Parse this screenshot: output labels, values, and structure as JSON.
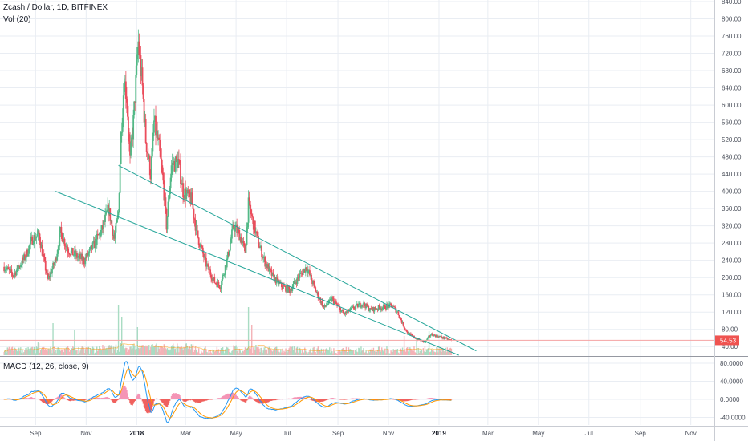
{
  "header": {
    "symbol_title": "Zcash / Dollar, 1D, BITFINEX",
    "volume_label": "Vol (20)",
    "macd_label": "MACD (12, 26, close, 9)"
  },
  "colors": {
    "up": "#53b987",
    "down": "#eb4d5c",
    "trendline": "#26a69a",
    "price_line": "#f5a3a3",
    "price_tag_bg": "#ef5350",
    "macd_line": "#2196f3",
    "signal_line": "#ff9800",
    "hist_up": "#26a69a",
    "hist_down": "#ef5350",
    "vol_ma": "#ff9800",
    "grid": "#e9edf3",
    "axis_text": "#4a4f5a"
  },
  "chart_data": [
    {
      "type": "candlestick",
      "title": "Zcash / Dollar, 1D, BITFINEX",
      "x_ticks": [
        "Sep",
        "Nov",
        "2018",
        "Mar",
        "May",
        "Jul",
        "Sep",
        "Nov",
        "2019",
        "Mar",
        "May",
        "Jul",
        "Sep",
        "Nov"
      ],
      "y_ticks": [
        "840.00",
        "800.00",
        "760.00",
        "720.00",
        "680.00",
        "640.00",
        "600.00",
        "560.00",
        "520.00",
        "480.00",
        "440.00",
        "400.00",
        "360.00",
        "320.00",
        "280.00",
        "240.00",
        "200.00",
        "160.00",
        "120.00",
        "80.00",
        "40.00"
      ],
      "ylim": [
        20,
        840
      ],
      "y_axis_side": "right",
      "last_price": "54.53",
      "close_keypoints": [
        [
          "2017-07-25",
          225
        ],
        [
          "2017-08-05",
          205
        ],
        [
          "2017-08-20",
          250
        ],
        [
          "2017-08-28",
          290
        ],
        [
          "2017-09-05",
          300
        ],
        [
          "2017-09-12",
          230
        ],
        [
          "2017-09-16",
          195
        ],
        [
          "2017-09-25",
          240
        ],
        [
          "2017-10-01",
          305
        ],
        [
          "2017-10-10",
          265
        ],
        [
          "2017-10-20",
          250
        ],
        [
          "2017-10-30",
          240
        ],
        [
          "2017-11-10",
          275
        ],
        [
          "2017-11-20",
          310
        ],
        [
          "2017-11-28",
          360
        ],
        [
          "2017-12-05",
          290
        ],
        [
          "2017-12-10",
          350
        ],
        [
          "2017-12-13",
          530
        ],
        [
          "2017-12-17",
          660
        ],
        [
          "2017-12-20",
          620
        ],
        [
          "2017-12-24",
          470
        ],
        [
          "2017-12-28",
          560
        ],
        [
          "2018-01-03",
          745
        ],
        [
          "2018-01-08",
          640
        ],
        [
          "2018-01-12",
          520
        ],
        [
          "2018-01-18",
          440
        ],
        [
          "2018-01-22",
          560
        ],
        [
          "2018-01-28",
          500
        ],
        [
          "2018-02-02",
          420
        ],
        [
          "2018-02-06",
          320
        ],
        [
          "2018-02-12",
          460
        ],
        [
          "2018-02-20",
          470
        ],
        [
          "2018-02-26",
          400
        ],
        [
          "2018-03-08",
          380
        ],
        [
          "2018-03-15",
          300
        ],
        [
          "2018-03-25",
          235
        ],
        [
          "2018-04-05",
          190
        ],
        [
          "2018-04-12",
          180
        ],
        [
          "2018-04-20",
          240
        ],
        [
          "2018-04-28",
          320
        ],
        [
          "2018-05-05",
          300
        ],
        [
          "2018-05-12",
          260
        ],
        [
          "2018-05-16",
          370
        ],
        [
          "2018-05-20",
          340
        ],
        [
          "2018-05-28",
          280
        ],
        [
          "2018-06-05",
          235
        ],
        [
          "2018-06-15",
          200
        ],
        [
          "2018-06-25",
          180
        ],
        [
          "2018-07-05",
          170
        ],
        [
          "2018-07-15",
          200
        ],
        [
          "2018-07-25",
          225
        ],
        [
          "2018-08-05",
          170
        ],
        [
          "2018-08-15",
          130
        ],
        [
          "2018-08-25",
          150
        ],
        [
          "2018-09-08",
          115
        ],
        [
          "2018-09-20",
          130
        ],
        [
          "2018-10-01",
          140
        ],
        [
          "2018-10-10",
          125
        ],
        [
          "2018-10-20",
          130
        ],
        [
          "2018-11-05",
          135
        ],
        [
          "2018-11-12",
          120
        ],
        [
          "2018-11-20",
          85
        ],
        [
          "2018-11-25",
          70
        ],
        [
          "2018-12-05",
          58
        ],
        [
          "2018-12-15",
          50
        ],
        [
          "2018-12-22",
          68
        ],
        [
          "2018-12-31",
          64
        ],
        [
          "2019-01-10",
          58
        ],
        [
          "2019-01-16",
          54.53
        ]
      ],
      "trendlines": [
        {
          "from": [
            "2017-12-10",
            460
          ],
          "to": [
            "2019-02-15",
            30
          ]
        },
        {
          "from": [
            "2017-09-25",
            400
          ],
          "to": [
            "2019-01-25",
            20
          ]
        }
      ]
    },
    {
      "type": "bar",
      "name": "Vol (20)",
      "spikes": [
        [
          "2017-09-22",
          40
        ],
        [
          "2017-10-18",
          32
        ],
        [
          "2017-12-10",
          62
        ],
        [
          "2017-12-14",
          48
        ],
        [
          "2018-01-02",
          35
        ],
        [
          "2018-05-16",
          60
        ],
        [
          "2018-05-20",
          38
        ],
        [
          "2018-11-20",
          24
        ],
        [
          "2018-12-05",
          22
        ],
        [
          "2018-12-20",
          30
        ]
      ]
    },
    {
      "type": "line",
      "name": "MACD (12, 26, close, 9)",
      "y_ticks": [
        "80.0000",
        "40.0000",
        "0.0000",
        "-40.0000"
      ],
      "ylim": [
        -50,
        90
      ],
      "histogram_colors": [
        "#26a69a",
        "#ef5350"
      ]
    }
  ]
}
